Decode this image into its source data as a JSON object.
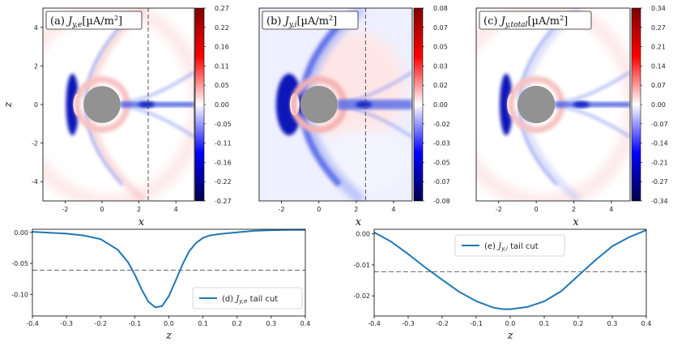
{
  "chart_data": [
    {
      "type": "heatmap",
      "id": "a",
      "title": "(a) J_{y,e}[µA/m²]",
      "label": "(a)",
      "quantity": "J",
      "subscript": "y,e",
      "units": "[µA/m",
      "units_sup": "2",
      "units_close": "]",
      "xlabel": "x",
      "ylabel": "z",
      "xlim": [
        -3.2,
        5.0
      ],
      "ylim": [
        -5.0,
        5.0
      ],
      "xticks": [
        -2,
        0,
        2,
        4
      ],
      "yticks": [
        -4,
        -2,
        0,
        2,
        4
      ],
      "colorbar_ticks": [
        "0.27",
        "0.22",
        "0.16",
        "0.11",
        "0.05",
        "0.00",
        "-0.05",
        "-0.11",
        "-0.16",
        "-0.22",
        "-0.27"
      ],
      "cut_x": 2.5,
      "obstacle_radius": 1.0
    },
    {
      "type": "heatmap",
      "id": "b",
      "title": "(b) J_{y,i}[µA/m²]",
      "label": "(b)",
      "quantity": "J",
      "subscript": "y,i",
      "units": "[µA/m",
      "units_sup": "2",
      "units_close": "]",
      "xlabel": "x",
      "ylabel": "",
      "xlim": [
        -3.2,
        5.0
      ],
      "ylim": [
        -5.0,
        5.0
      ],
      "xticks": [
        -2,
        0,
        2,
        4
      ],
      "yticks": [],
      "colorbar_ticks": [
        "0.08",
        "0.07",
        "0.05",
        "0.03",
        "0.02",
        "0.00",
        "-0.02",
        "-0.03",
        "-0.05",
        "-0.07",
        "-0.08"
      ],
      "cut_x": 2.5,
      "obstacle_radius": 1.0
    },
    {
      "type": "heatmap",
      "id": "c",
      "title": "(c) J_{y,total}[µA/m²]",
      "label": "(c)",
      "quantity": "J",
      "subscript": "y,total",
      "units": "[µA/m",
      "units_sup": "2",
      "units_close": "]",
      "xlabel": "x",
      "ylabel": "",
      "xlim": [
        -3.2,
        5.0
      ],
      "ylim": [
        -5.0,
        5.0
      ],
      "xticks": [
        -2,
        0,
        2,
        4
      ],
      "yticks": [],
      "colorbar_ticks": [
        "0.34",
        "0.27",
        "0.21",
        "0.14",
        "0.07",
        "0.00",
        "-0.07",
        "-0.14",
        "-0.21",
        "-0.27",
        "-0.34"
      ],
      "cut_x": null,
      "obstacle_radius": 1.0
    },
    {
      "type": "line",
      "id": "d",
      "legend": "(d) J_{y,e} tail cut",
      "legend_prefix": "(d)",
      "legend_sub": "y,e",
      "legend_suffix": "tail cut",
      "legend_position": "lower-right",
      "xlabel": "z",
      "ylabel": "",
      "xlim": [
        -0.4,
        0.4
      ],
      "ylim": [
        -0.135,
        0.005
      ],
      "xticks": [
        "-0.4",
        "-0.3",
        "-0.2",
        "-0.1",
        "0.0",
        "0.1",
        "0.2",
        "0.3",
        "0.4"
      ],
      "yticks": [
        "0.00",
        "-0.05",
        "-0.10"
      ],
      "ytick_values": [
        0.0,
        -0.05,
        -0.1
      ],
      "hline": -0.061,
      "series": [
        {
          "name": "J_{y,e} tail cut",
          "color": "#1f77b4",
          "x": [
            -0.4,
            -0.35,
            -0.3,
            -0.25,
            -0.2,
            -0.15,
            -0.12,
            -0.1,
            -0.08,
            -0.06,
            -0.04,
            -0.02,
            0.0,
            0.02,
            0.04,
            0.06,
            0.08,
            0.1,
            0.12,
            0.15,
            0.2,
            0.25,
            0.3,
            0.35,
            0.4
          ],
          "y": [
            0.001,
            -0.0005,
            -0.002,
            -0.005,
            -0.011,
            -0.028,
            -0.048,
            -0.068,
            -0.092,
            -0.112,
            -0.121,
            -0.119,
            -0.103,
            -0.078,
            -0.052,
            -0.03,
            -0.017,
            -0.009,
            -0.005,
            -0.0025,
            0.0,
            0.0025,
            0.0035,
            0.004,
            0.004
          ]
        }
      ]
    },
    {
      "type": "line",
      "id": "e",
      "legend": "(e) J_{y,i} tail cut",
      "legend_prefix": "(e)",
      "legend_sub": "y,i",
      "legend_suffix": "tail cut",
      "legend_position": "upper-center",
      "xlabel": "z",
      "ylabel": "",
      "xlim": [
        -0.4,
        0.4
      ],
      "ylim": [
        -0.0265,
        0.0015
      ],
      "xticks": [
        "-0.4",
        "-0.3",
        "-0.2",
        "-0.1",
        "0.0",
        "0.1",
        "0.2",
        "0.3",
        "0.4"
      ],
      "yticks": [
        "0.00",
        "-0.01",
        "-0.02"
      ],
      "ytick_values": [
        0.0,
        -0.01,
        -0.02
      ],
      "hline": -0.0122,
      "series": [
        {
          "name": "J_{y,i} tail cut",
          "color": "#1f77b4",
          "x": [
            -0.4,
            -0.35,
            -0.3,
            -0.25,
            -0.2,
            -0.15,
            -0.1,
            -0.05,
            -0.02,
            0.0,
            0.05,
            0.1,
            0.15,
            0.2,
            0.25,
            0.3,
            0.35,
            0.4
          ],
          "y": [
            0.0005,
            -0.0025,
            -0.0065,
            -0.0108,
            -0.0148,
            -0.0187,
            -0.0217,
            -0.0238,
            -0.0243,
            -0.0243,
            -0.0236,
            -0.0218,
            -0.0185,
            -0.0135,
            -0.0085,
            -0.004,
            -0.001,
            0.0012
          ]
        }
      ]
    }
  ]
}
